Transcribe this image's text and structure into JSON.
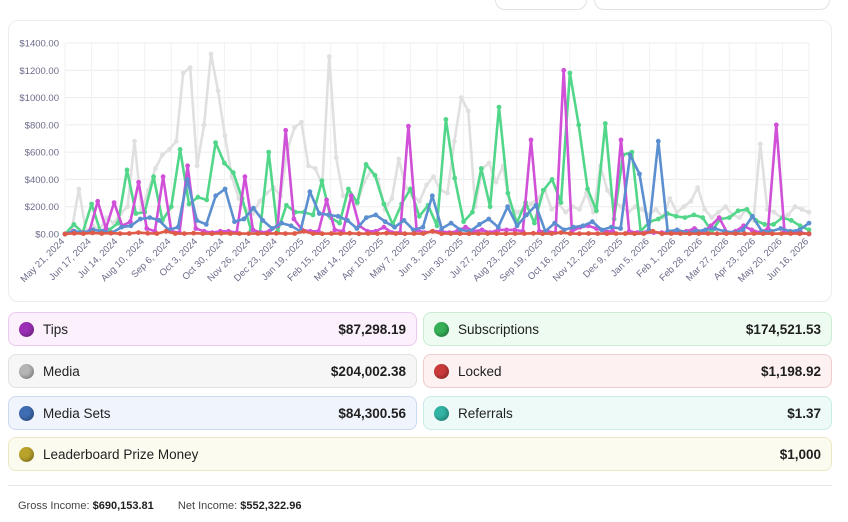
{
  "chart_data": {
    "type": "line",
    "yticks": [
      "$0.00",
      "$200.00",
      "$400.00",
      "$600.00",
      "$800.00",
      "$1000.00",
      "$1200.00",
      "$1400.00"
    ],
    "ylim": [
      0,
      1400
    ],
    "xticks": [
      "May 21, 2024",
      "Jun 17, 2024",
      "Jul 14, 2024",
      "Aug 10, 2024",
      "Sep 6, 2024",
      "Oct 3, 2024",
      "Oct 30, 2024",
      "Nov 26, 2024",
      "Dec 23, 2024",
      "Jan 19, 2025",
      "Feb 15, 2025",
      "Mar 14, 2025",
      "Apr 10, 2025",
      "May 7, 2025",
      "Jun 3, 2025",
      "Jun 30, 2025",
      "Jul 27, 2025",
      "Aug 23, 2025",
      "Sep 19, 2025",
      "Oct 16, 2025",
      "Nov 12, 2025",
      "Dec 9, 2025",
      "Jan 5, 2026",
      "Feb 1, 2026",
      "Feb 28, 2026",
      "Mar 27, 2026",
      "Apr 23, 2026",
      "May 20, 2026",
      "Jun 16, 2026"
    ],
    "grid": true,
    "series": [
      {
        "name": "Media",
        "color": "#e0e0e0",
        "values": [
          0,
          40,
          330,
          20,
          60,
          30,
          120,
          80,
          150,
          200,
          680,
          180,
          320,
          480,
          580,
          620,
          680,
          1180,
          1220,
          500,
          800,
          1320,
          1050,
          720,
          420,
          260,
          180,
          150,
          240,
          300,
          340,
          280,
          620,
          780,
          820,
          500,
          480,
          360,
          1300,
          560,
          280,
          300,
          220,
          380,
          460,
          400,
          180,
          260,
          550,
          340,
          280,
          240,
          360,
          420,
          320,
          300,
          680,
          1000,
          900,
          200,
          480,
          520,
          380,
          500,
          200,
          160,
          180,
          220,
          260,
          320,
          180,
          220,
          160,
          200,
          180,
          300,
          160,
          500,
          320,
          240,
          200,
          160,
          200,
          180,
          140,
          180,
          120,
          260,
          160,
          200,
          240,
          340,
          180,
          120,
          160,
          200,
          140,
          120,
          180,
          100,
          660,
          180,
          160,
          120,
          140,
          200,
          180,
          160
        ]
      },
      {
        "name": "Subscriptions",
        "color": "#52d68a",
        "values": [
          0,
          70,
          10,
          220,
          20,
          30,
          80,
          470,
          150,
          160,
          420,
          100,
          200,
          620,
          220,
          270,
          250,
          670,
          520,
          450,
          260,
          30,
          10,
          600,
          20,
          210,
          160,
          160,
          140,
          390,
          120,
          80,
          330,
          230,
          510,
          430,
          220,
          70,
          220,
          330,
          130,
          210,
          60,
          840,
          410,
          90,
          160,
          480,
          200,
          930,
          300,
          80,
          230,
          80,
          320,
          400,
          230,
          1180,
          800,
          330,
          170,
          810,
          110,
          580,
          600,
          20,
          90,
          110,
          150,
          130,
          120,
          140,
          120,
          20,
          110,
          120,
          170,
          180,
          100,
          70,
          70,
          120,
          100,
          60,
          30
        ]
      },
      {
        "name": "Tips",
        "color": "#d050d8",
        "values": [
          0,
          20,
          10,
          20,
          240,
          40,
          230,
          60,
          90,
          380,
          40,
          20,
          420,
          20,
          10,
          500,
          40,
          20,
          10,
          20,
          20,
          10,
          420,
          30,
          10,
          20,
          60,
          760,
          110,
          30,
          20,
          20,
          250,
          30,
          20,
          280,
          60,
          20,
          20,
          50,
          10,
          10,
          790,
          30,
          10,
          20,
          20,
          10,
          20,
          50,
          20,
          30,
          10,
          30,
          30,
          30,
          20,
          690,
          20,
          20,
          10,
          1200,
          20,
          50,
          60,
          40,
          20,
          20,
          690,
          20,
          10,
          10,
          10,
          10,
          10,
          20,
          20,
          40,
          10,
          60,
          120,
          10,
          20,
          60,
          30,
          10,
          40,
          800,
          20,
          10,
          10,
          0
        ]
      },
      {
        "name": "Media Sets",
        "color": "#5b8fd0",
        "values": [
          0,
          20,
          10,
          30,
          20,
          10,
          50,
          60,
          110,
          120,
          100,
          30,
          50,
          400,
          100,
          70,
          280,
          330,
          90,
          110,
          190,
          100,
          40,
          80,
          60,
          20,
          310,
          150,
          140,
          130,
          100,
          40,
          120,
          140,
          90,
          50,
          100,
          30,
          50,
          280,
          40,
          80,
          30,
          20,
          70,
          110,
          50,
          200,
          60,
          140,
          210,
          20,
          80,
          30,
          50,
          60,
          90,
          30,
          50,
          40,
          580,
          440,
          30,
          680,
          20,
          30,
          10,
          20,
          30,
          40,
          20,
          10,
          30,
          130,
          20,
          20,
          40,
          20,
          30,
          80
        ]
      },
      {
        "name": "Locked",
        "color": "#e05a48",
        "values": [
          0,
          5,
          3,
          8,
          4,
          6,
          3,
          4,
          10,
          5,
          3,
          20,
          4,
          3,
          6,
          3,
          2,
          5,
          4,
          3,
          3,
          4,
          2,
          5,
          3,
          4,
          20,
          3,
          2,
          4,
          3,
          5,
          2,
          4,
          3,
          6,
          3,
          2,
          4,
          3,
          20,
          2,
          4,
          3,
          2,
          3,
          4,
          3,
          2,
          4,
          3,
          5,
          2,
          3,
          10,
          3,
          2,
          4,
          3,
          2,
          3,
          4,
          2,
          3,
          20,
          2,
          4,
          3,
          2,
          3,
          4,
          2,
          3,
          3,
          2,
          4,
          3,
          2,
          3,
          4,
          2,
          3
        ]
      }
    ]
  },
  "stats": {
    "tips": {
      "label": "Tips",
      "value": "$87,298.19",
      "color": "#9b2fb5"
    },
    "subscriptions": {
      "label": "Subscriptions",
      "value": "$174,521.53",
      "color": "#35b056"
    },
    "media": {
      "label": "Media",
      "value": "$204,002.38",
      "color": "#b5b5b5"
    },
    "locked": {
      "label": "Locked",
      "value": "$1,198.92",
      "color": "#c93a3a"
    },
    "media_sets": {
      "label": "Media Sets",
      "value": "$84,300.56",
      "color": "#3f6db3"
    },
    "referrals": {
      "label": "Referrals",
      "value": "$1.37",
      "color": "#32b3a3"
    },
    "leaderboard": {
      "label": "Leaderboard Prize Money",
      "value": "$1,000",
      "color": "#b9a32a"
    }
  },
  "footer": {
    "gross_label": "Gross Income:",
    "gross_value": "$690,153.81",
    "net_label": "Net Income:",
    "net_value": "$552,322.96"
  }
}
